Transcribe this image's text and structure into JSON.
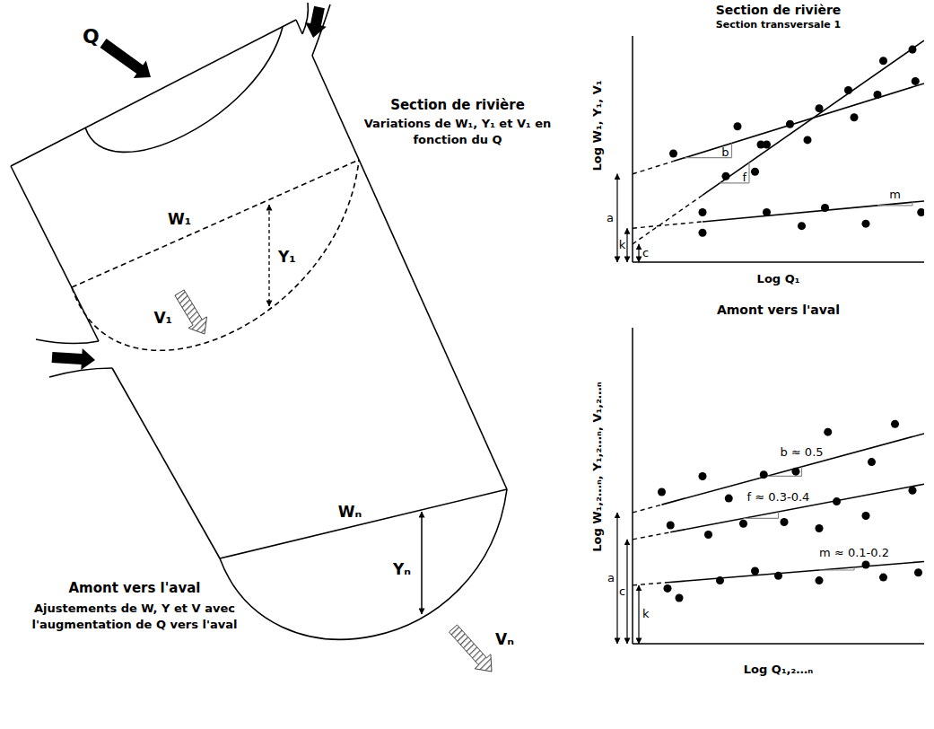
{
  "diagram": {
    "title": "Section de rivière",
    "subtitle_lines": [
      "Variations de W₁, Y₁ et V₁ en",
      "fonction du Q"
    ],
    "bottom_title": "Amont vers l'aval",
    "bottom_lines": [
      "Ajustements de W, Y et V avec",
      "l'augmentation de Q vers l'aval"
    ],
    "labels": {
      "discharge": "Q",
      "width_1": "W₁",
      "depth_1": "Y₁",
      "velocity_1": "V₁",
      "width_n": "Wₙ",
      "depth_n": "Yₙ",
      "velocity_n": "Vₙ"
    }
  },
  "chart_data": [
    {
      "type": "scatter",
      "title": "Section de rivière",
      "subtitle": "Section transversale 1",
      "x_label": "Log Q₁",
      "y_label": "Log W₁, Y₁, V₁",
      "xlim": [
        0,
        10
      ],
      "ylim": [
        0,
        10
      ],
      "tick_labels": false,
      "color": "#000000",
      "series": [
        {
          "slope_label": "b",
          "intercept_label": "a",
          "intercept": 3.9,
          "slope": 0.4,
          "x": [
            1.4,
            3.6,
            4.4,
            5.4,
            6.4,
            7.6,
            8.4,
            9.7
          ],
          "values": [
            4.8,
            6.0,
            5.2,
            6.1,
            6.8,
            6.4,
            7.4,
            8.0
          ]
        },
        {
          "slope_label": "f",
          "intercept_label": "c",
          "intercept": 0.8,
          "slope": 0.9,
          "x": [
            2.4,
            3.2,
            4.2,
            4.6,
            6.0,
            7.4,
            8.6,
            9.6
          ],
          "values": [
            2.2,
            3.8,
            4.0,
            5.2,
            5.4,
            7.6,
            8.9,
            9.4
          ]
        },
        {
          "slope_label": "m",
          "intercept_label": "k",
          "intercept": 1.5,
          "slope": 0.12,
          "x": [
            2.4,
            4.6,
            5.8,
            6.6,
            8.0,
            9.9
          ],
          "values": [
            1.3,
            2.2,
            1.6,
            2.4,
            1.7,
            2.2
          ]
        }
      ]
    },
    {
      "type": "scatter",
      "title": "Amont vers l'aval",
      "x_label": "Log Q₁,₂…ₙ",
      "y_label": "Log W₁,₂…ₙ, Y₁,₂…ₙ, V₁,₂…ₙ",
      "xlim": [
        0,
        10
      ],
      "ylim": [
        0,
        20
      ],
      "tick_labels": false,
      "color": "#000000",
      "series": [
        {
          "slope_label": "b ≈ 0.5",
          "intercept_label": "a",
          "intercept": 8.3,
          "slope": 0.5,
          "x": [
            1.0,
            2.4,
            3.3,
            4.5,
            5.6,
            6.7,
            8.2,
            9.0
          ],
          "values": [
            9.6,
            10.6,
            9.2,
            10.7,
            10.9,
            13.4,
            11.5,
            13.9
          ]
        },
        {
          "slope_label": "f ≈ 0.3-0.4",
          "intercept_label": "c",
          "intercept": 6.6,
          "slope": 0.35,
          "x": [
            1.3,
            2.6,
            3.8,
            5.2,
            6.4,
            7.0,
            8.0,
            9.6
          ],
          "values": [
            7.5,
            6.9,
            7.6,
            7.7,
            7.3,
            9.0,
            8.1,
            9.7
          ]
        },
        {
          "slope_label": "m ≈ 0.1-0.2",
          "intercept_label": "k",
          "intercept": 3.7,
          "slope": 0.15,
          "x": [
            1.2,
            1.6,
            3.0,
            4.2,
            5.0,
            6.4,
            8.0,
            8.6,
            9.8
          ],
          "values": [
            3.5,
            2.9,
            4.0,
            4.6,
            4.3,
            4.0,
            5.0,
            4.2,
            4.5
          ]
        }
      ]
    }
  ]
}
